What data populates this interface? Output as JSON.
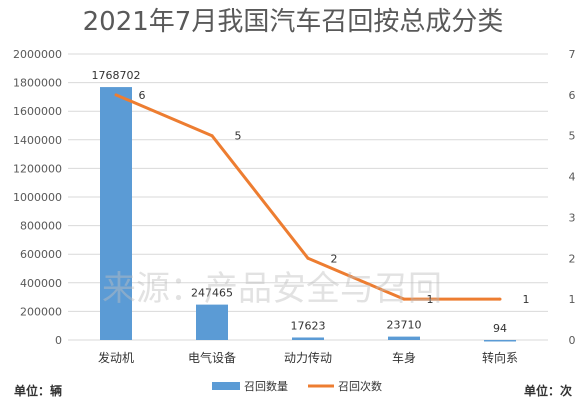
{
  "chart_data": {
    "type": "bar",
    "title": "2021年7月我国汽车召回按总成分类",
    "categories": [
      "发动机",
      "电气设备",
      "动力传动",
      "车身",
      "转向系"
    ],
    "series": [
      {
        "name": "召回数量",
        "type": "bar",
        "axis": "left",
        "color": "#5b9bd5",
        "values": [
          1768702,
          247465,
          17623,
          23710,
          94
        ]
      },
      {
        "name": "召回次数",
        "type": "line",
        "axis": "right",
        "color": "#ed7d31",
        "values": [
          6,
          5,
          2,
          1,
          1
        ]
      }
    ],
    "y_left": {
      "min": 0,
      "max": 2000000,
      "step": 200000
    },
    "y_right": {
      "min": 0,
      "max": 7,
      "step": 1
    },
    "left_unit": "单位：辆",
    "right_unit": "单位：次",
    "watermark": "来源：产品安全与召回",
    "legend_position": "bottom"
  }
}
